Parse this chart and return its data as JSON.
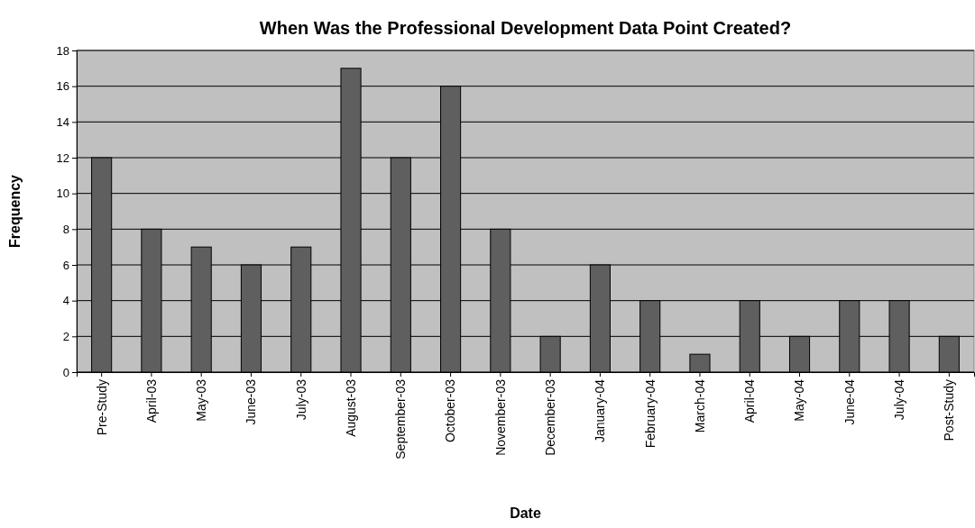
{
  "chart_data": {
    "type": "bar",
    "title": "When Was the Professional Development Data Point Created?",
    "xlabel": "Date",
    "ylabel": "Frequency",
    "categories": [
      "Pre-Study",
      "April-03",
      "May-03",
      "June-03",
      "July-03",
      "August-03",
      "September-03",
      "October-03",
      "November-03",
      "December-03",
      "January-04",
      "February-04",
      "March-04",
      "April-04",
      "May-04",
      "June-04",
      "July-04",
      "Post-Study"
    ],
    "values": [
      12,
      8,
      7,
      6,
      7,
      17,
      12,
      16,
      8,
      2,
      6,
      4,
      1,
      4,
      2,
      4,
      4,
      2
    ],
    "color": "#5f5f5f",
    "ylim": [
      0,
      18
    ],
    "yticks": [
      0,
      2,
      4,
      6,
      8,
      10,
      12,
      14,
      16,
      18
    ],
    "grid": "y"
  }
}
